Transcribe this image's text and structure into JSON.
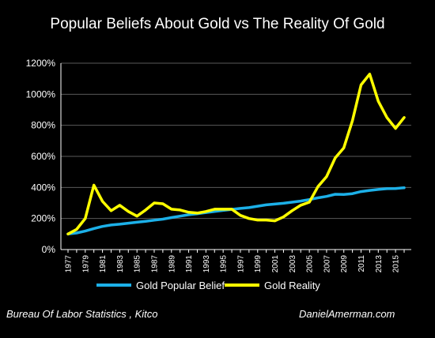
{
  "chart_data": {
    "type": "line",
    "title": "Popular Beliefs About Gold vs The Reality Of Gold",
    "xlabel": "",
    "ylabel": "",
    "ylim": [
      0,
      1200
    ],
    "y_ticks": [
      "0%",
      "200%",
      "400%",
      "600%",
      "800%",
      "1000%",
      "1200%"
    ],
    "x_tick_labels": [
      "1977",
      "1979",
      "1981",
      "1983",
      "1985",
      "1987",
      "1989",
      "1991",
      "1993",
      "1995",
      "1997",
      "1999",
      "2001",
      "2003",
      "2005",
      "2007",
      "2009",
      "2011",
      "2013",
      "2015"
    ],
    "x": [
      1977,
      1978,
      1979,
      1980,
      1981,
      1982,
      1983,
      1984,
      1985,
      1986,
      1987,
      1988,
      1989,
      1990,
      1991,
      1992,
      1993,
      1994,
      1995,
      1996,
      1997,
      1998,
      1999,
      2000,
      2001,
      2002,
      2003,
      2004,
      2005,
      2006,
      2007,
      2008,
      2009,
      2010,
      2011,
      2012,
      2013,
      2014,
      2015,
      2016
    ],
    "grid": true,
    "legend_position": "bottom",
    "series": [
      {
        "name": "Gold Popular Belief",
        "color": "#1cb0e8",
        "values": [
          100,
          107,
          119,
          135,
          149,
          158,
          163,
          170,
          176,
          182,
          189,
          196,
          206,
          215,
          224,
          231,
          238,
          245,
          252,
          259,
          265,
          270,
          279,
          288,
          293,
          298,
          305,
          312,
          322,
          333,
          342,
          356,
          355,
          360,
          373,
          381,
          387,
          392,
          393,
          398
        ]
      },
      {
        "name": "Gold Reality",
        "color": "#ffff00",
        "values": [
          100,
          130,
          200,
          415,
          310,
          250,
          285,
          245,
          215,
          255,
          300,
          295,
          260,
          255,
          240,
          235,
          245,
          260,
          260,
          260,
          220,
          200,
          190,
          190,
          185,
          210,
          250,
          285,
          305,
          405,
          470,
          590,
          655,
          830,
          1060,
          1130,
          955,
          850,
          780,
          850
        ]
      }
    ],
    "annotations": [
      "Bureau Of Labor Statistics , Kitco",
      "DanielAmerman.com"
    ]
  }
}
